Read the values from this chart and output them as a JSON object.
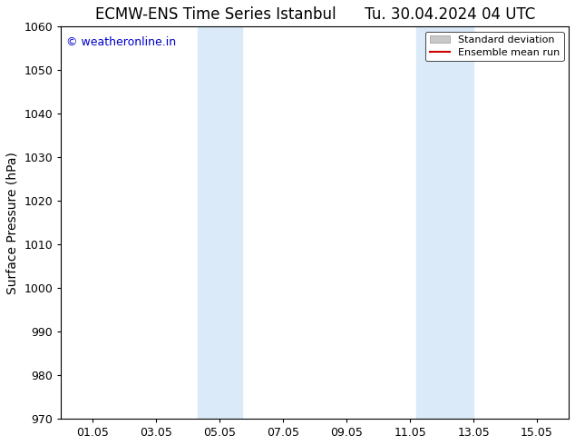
{
  "title": "ECMW-ENS Time Series Istanbul",
  "title2": "Tu. 30.04.2024 04 UTC",
  "ylabel": "Surface Pressure (hPa)",
  "ylim": [
    970,
    1060
  ],
  "yticks": [
    970,
    980,
    990,
    1000,
    1010,
    1020,
    1030,
    1040,
    1050,
    1060
  ],
  "xtick_labels": [
    "01.05",
    "03.05",
    "05.05",
    "07.05",
    "09.05",
    "11.05",
    "13.05",
    "15.05"
  ],
  "xtick_positions": [
    1,
    3,
    5,
    7,
    9,
    11,
    13,
    15
  ],
  "xlim": [
    0.0,
    16.0
  ],
  "shaded_regions": [
    {
      "xmin": 4.3,
      "xmax": 5.7,
      "color": "#daeaf8"
    },
    {
      "xmin": 11.2,
      "xmax": 13.0,
      "color": "#daeaf8"
    }
  ],
  "watermark_text": "© weatheronline.in",
  "watermark_color": "#0000cc",
  "legend_std_label": "Standard deviation",
  "legend_mean_label": "Ensemble mean run",
  "std_color": "#c8c8c8",
  "mean_color": "#cc0000",
  "background_color": "#ffffff",
  "title_fontsize": 12,
  "axis_label_fontsize": 10,
  "tick_fontsize": 9,
  "watermark_fontsize": 9,
  "legend_fontsize": 8
}
